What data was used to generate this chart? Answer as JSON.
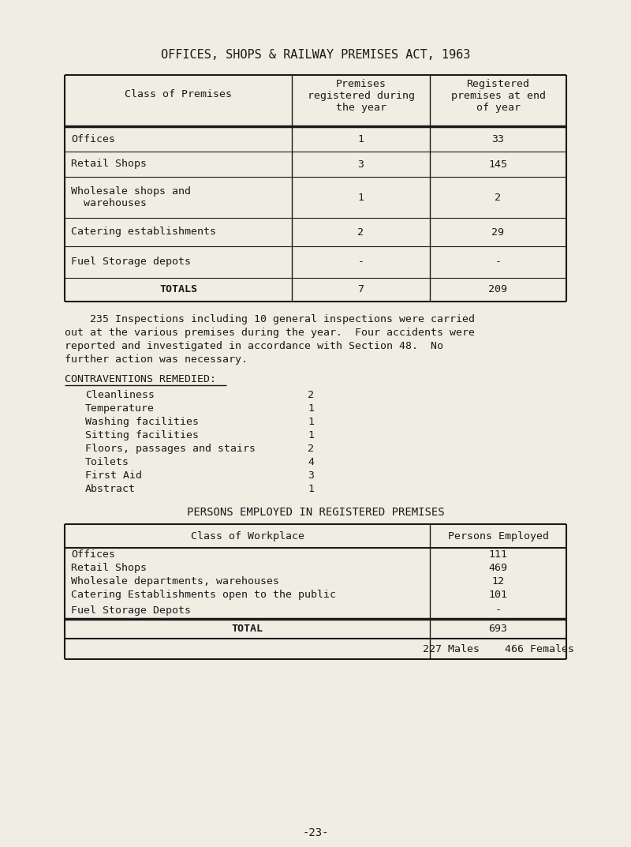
{
  "bg_color": "#f0ede3",
  "text_color": "#1a1a1a",
  "title": "OFFICES, SHOPS & RAILWAY PREMISES ACT, 1963",
  "table1_col1_header": "Class of Premises",
  "table1_col2_header": "Premises\nregistered during\nthe year",
  "table1_col3_header": "Registered\npremises at end\nof year",
  "table1_rows": [
    [
      "Offices",
      "1",
      "33"
    ],
    [
      "Retail Shops",
      "3",
      "145"
    ],
    [
      "Wholesale shops and\n  warehouses",
      "1",
      "2"
    ],
    [
      "Catering establishments",
      "2",
      "29"
    ],
    [
      "Fuel Storage depots",
      "-",
      "-"
    ]
  ],
  "table1_totals": [
    "TOTALS",
    "7",
    "209"
  ],
  "paragraph_lines": [
    "    235 Inspections including 10 general inspections were carried",
    "out at the various premises during the year.  Four accidents were",
    "reported and investigated in accordance with Section 48.  No",
    "further action was necessary."
  ],
  "contraventions_title": "CONTRAVENTIONS REMEDIED:",
  "contraventions": [
    [
      "Cleanliness",
      "2"
    ],
    [
      "Temperature",
      "1"
    ],
    [
      "Washing facilities",
      "1"
    ],
    [
      "Sitting facilities",
      "1"
    ],
    [
      "Floors, passages and stairs",
      "2"
    ],
    [
      "Toilets",
      "4"
    ],
    [
      "First Aid",
      "3"
    ],
    [
      "Abstract",
      "1"
    ]
  ],
  "table2_title": "PERSONS EMPLOYED IN REGISTERED PREMISES",
  "table2_col1_header": "Class of Workplace",
  "table2_col2_header": "Persons Employed",
  "table2_rows": [
    [
      "Offices",
      "111"
    ],
    [
      "Retail Shops",
      "469"
    ],
    [
      "Wholesale departments, warehouses",
      "12"
    ],
    [
      "Catering Establishments open to the public",
      "101"
    ],
    [
      "Fuel Storage Depots",
      "-"
    ]
  ],
  "table2_total": [
    "TOTAL",
    "693"
  ],
  "table2_footer": "227 Males    466 Females",
  "page_number": "-23-"
}
